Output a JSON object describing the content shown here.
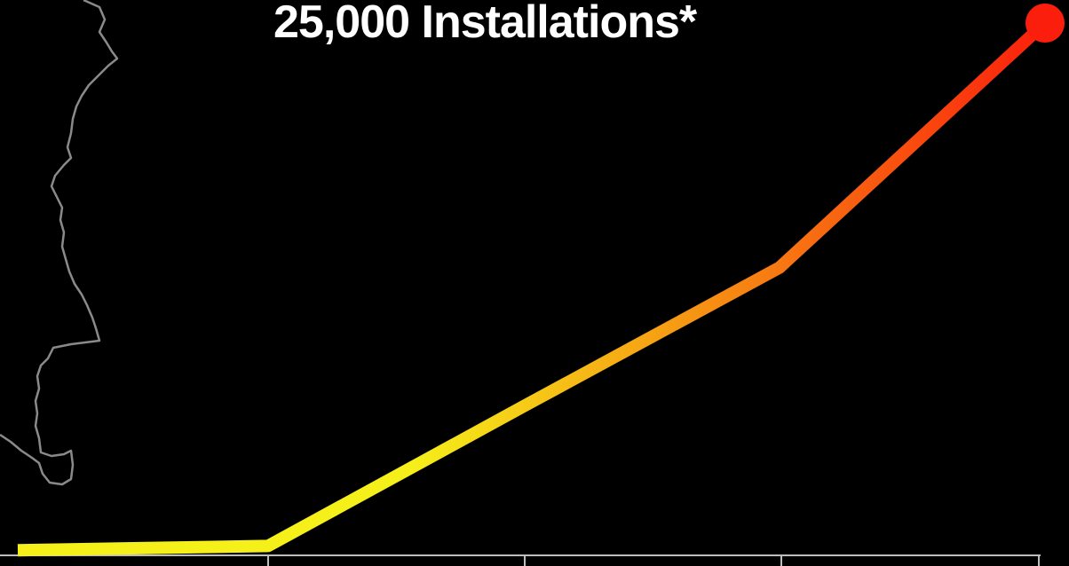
{
  "chart_data": {
    "type": "line",
    "title": "25,000 Installations*",
    "xlabel": "",
    "ylabel": "",
    "x": [
      0,
      1,
      2,
      3,
      4
    ],
    "values": [
      200,
      400,
      7000,
      13500,
      25000
    ],
    "ylim": [
      0,
      25000
    ],
    "grid": false,
    "legend": "none",
    "end_marker": true
  },
  "colors": {
    "background": "#000000",
    "line_start": "#f5f01a",
    "line_mid": "#f6a114",
    "line_end": "#fb1e0c",
    "map_outline": "#8a8a8a",
    "axis": "#bdbdbd",
    "title": "#ffffff"
  },
  "decoration": {
    "map_outline": "state-border-outline"
  }
}
